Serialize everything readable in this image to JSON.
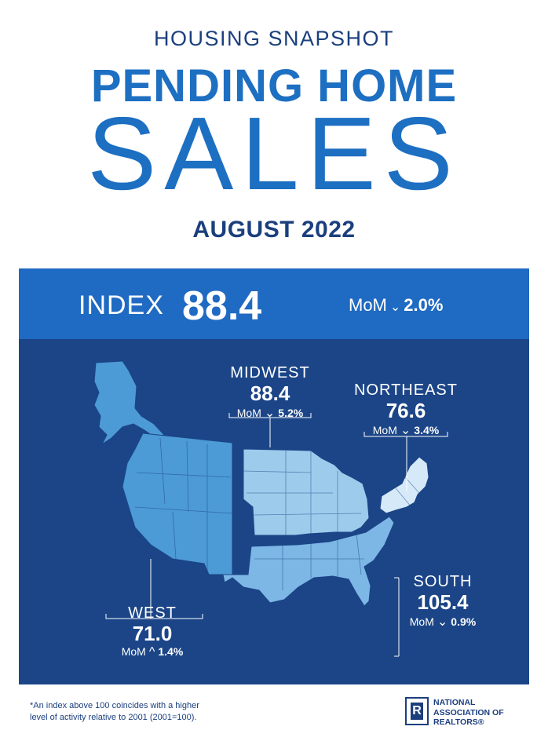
{
  "header": {
    "kicker": "HOUSING SNAPSHOT",
    "headline": "PENDING HOME",
    "headline_2": "SALES",
    "date": "AUGUST 2022"
  },
  "national": {
    "label": "INDEX",
    "value": "88.4",
    "mom_label": "MoM",
    "mom_direction": "down",
    "mom_arrow": "⌄",
    "mom_value": "2.0%"
  },
  "regions": [
    {
      "name": "MIDWEST",
      "value": "88.4",
      "mom_label": "MoM",
      "mom_direction": "down",
      "mom_arrow": "⌄",
      "mom_value": "5.2%"
    },
    {
      "name": "NORTHEAST",
      "value": "76.6",
      "mom_label": "MoM",
      "mom_direction": "down",
      "mom_arrow": "⌄",
      "mom_value": "3.4%"
    },
    {
      "name": "SOUTH",
      "value": "105.4",
      "mom_label": "MoM",
      "mom_direction": "down",
      "mom_arrow": "⌄",
      "mom_value": "0.9%"
    },
    {
      "name": "WEST",
      "value": "71.0",
      "mom_label": "MoM",
      "mom_direction": "up",
      "mom_arrow": "^",
      "mom_value": "1.4%"
    }
  ],
  "colors": {
    "panel": "#1b4587",
    "index_bar": "#1f6ac2",
    "west": "#4c9ad6",
    "midwest": "#9ccbec",
    "northeast": "#d6e9f8",
    "south": "#7db7e5",
    "alaska": "#4c9ad6"
  },
  "footnote": {
    "line1": "*An index above 100 coincides with a higher",
    "line2": "level of activity relative to 2001 (2001=100)."
  },
  "logo": {
    "mark": "R",
    "line1": "NATIONAL",
    "line2": "ASSOCIATION OF",
    "line3": "REALTORS®"
  }
}
